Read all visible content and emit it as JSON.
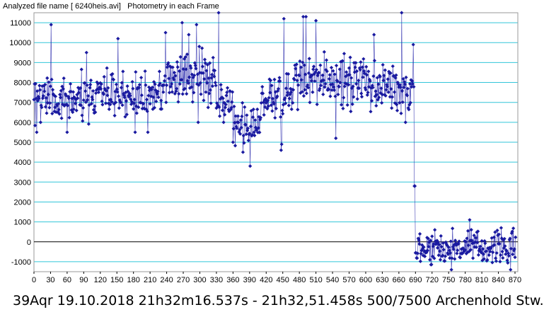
{
  "header": {
    "file_label": "Analyzed file name [ 6240heis.avi]",
    "mode_label": "Photometry in each Frame"
  },
  "caption": "39Aqr 19.10.2018 21h32m16.537s - 21h32,51.458s 500/7500 Archenhold Stw.",
  "chart_data": {
    "type": "line",
    "title": "",
    "xlabel": "",
    "ylabel": "",
    "xlim": [
      0,
      870
    ],
    "ylim": [
      -1500,
      11500
    ],
    "x_ticks": [
      0,
      30,
      60,
      90,
      120,
      150,
      180,
      210,
      240,
      270,
      300,
      330,
      360,
      390,
      420,
      450,
      480,
      510,
      540,
      570,
      600,
      630,
      660,
      690,
      720,
      750,
      780,
      810,
      840,
      870
    ],
    "y_ticks": [
      -1000,
      0,
      1000,
      2000,
      3000,
      4000,
      5000,
      6000,
      7000,
      8000,
      9000,
      10000,
      11000
    ],
    "grid": "horizontal",
    "colors": {
      "series": "#1e1ea8",
      "marker": "#1a1aa0",
      "grid": "#33c6d9",
      "zero_line": "#000000"
    },
    "series": [
      {
        "name": "",
        "segments": [
          {
            "x_from": 0,
            "x_to": 120,
            "mean": 7300,
            "spread": 950,
            "spikes": [
              [
                5,
                5500
              ],
              [
                12,
                6000
              ],
              [
                31,
                10900
              ],
              [
                60,
                5500
              ],
              [
                95,
                9500
              ]
            ]
          },
          {
            "x_from": 120,
            "x_to": 240,
            "mean": 7400,
            "spread": 900,
            "spikes": [
              [
                152,
                10200
              ],
              [
                183,
                5500
              ],
              [
                206,
                5500
              ],
              [
                238,
                10500
              ]
            ]
          },
          {
            "x_from": 240,
            "x_to": 330,
            "mean": 8200,
            "spread": 1100,
            "spikes": [
              [
                268,
                11000
              ],
              [
                280,
                10400
              ],
              [
                294,
                10900
              ],
              [
                297,
                6000
              ]
            ]
          },
          {
            "x_from": 330,
            "x_to": 360,
            "mean": 7000,
            "spread": 900,
            "spikes": [
              [
                334,
                11500
              ],
              [
                343,
                6000
              ]
            ]
          },
          {
            "x_from": 360,
            "x_to": 410,
            "mean": 6000,
            "spread": 900,
            "spikes": [
              [
                378,
                4500
              ],
              [
                391,
                3800
              ],
              [
                398,
                5500
              ]
            ]
          },
          {
            "x_from": 410,
            "x_to": 470,
            "mean": 7300,
            "spread": 1000,
            "spikes": [
              [
                447,
                4600
              ],
              [
                448,
                4900
              ],
              [
                452,
                11200
              ]
            ]
          },
          {
            "x_from": 470,
            "x_to": 600,
            "mean": 8100,
            "spread": 1000,
            "spikes": [
              [
                487,
                11300
              ],
              [
                492,
                11300
              ],
              [
                510,
                11100
              ],
              [
                546,
                5200
              ]
            ]
          },
          {
            "x_from": 600,
            "x_to": 688,
            "mean": 7800,
            "spread": 1000,
            "spikes": [
              [
                615,
                10400
              ],
              [
                665,
                11500
              ],
              [
                672,
                6000
              ],
              [
                686,
                9900
              ],
              [
                688,
                6000
              ]
            ]
          },
          {
            "x_from": 688,
            "x_to": 690,
            "mean": 2800,
            "spread": 0,
            "spikes": [
              [
                689,
                2800
              ]
            ]
          },
          {
            "x_from": 690,
            "x_to": 872,
            "mean": -300,
            "spread": 700,
            "spikes": [
              [
                725,
                600
              ],
              [
                755,
                -1400
              ],
              [
                788,
                1100
              ],
              [
                845,
                700
              ],
              [
                862,
                -1400
              ]
            ]
          }
        ]
      }
    ]
  }
}
